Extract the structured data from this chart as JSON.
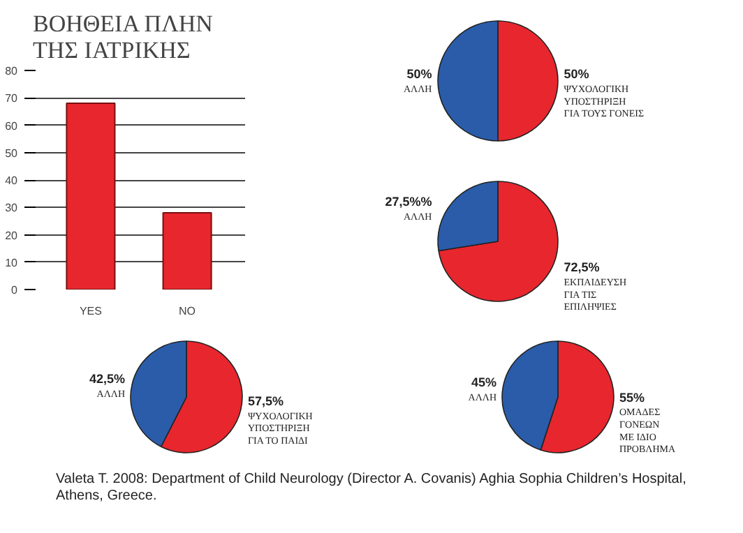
{
  "chart_data": [
    {
      "type": "bar",
      "title": "ΒΟΗΘΕΙΑ ΠΛΗΝ\nΤΗΣ ΙΑΤΡΙΚΗΣ",
      "categories": [
        "YES",
        "NO"
      ],
      "values": [
        68,
        28
      ],
      "color": "#e8262e",
      "ylim": [
        0,
        80
      ],
      "yticks": [
        0,
        10,
        20,
        30,
        40,
        50,
        60,
        70,
        80
      ],
      "grid": "y"
    },
    {
      "type": "pie",
      "categories": [
        "ΨΥΧΟΛΟΓΙΚΗ\nΥΠΟΣΤΗΡΙΞΗ\nΓΙΑ ΤΟΥΣ ΓΟΝΕΙΣ",
        "ΑΛΛΗ"
      ],
      "values": [
        50,
        50
      ],
      "colors": [
        "#e8262e",
        "#2a5caa"
      ],
      "value_labels": [
        "50%",
        "50%"
      ]
    },
    {
      "type": "pie",
      "categories": [
        "ΕΚΠΑΙΔΕΥΣΗ\nΓΙΑ ΤΙΣ\nΕΠΙΛΗΨΙΕΣ",
        "ΑΛΛΗ"
      ],
      "values": [
        72.5,
        27.5
      ],
      "colors": [
        "#e8262e",
        "#2a5caa"
      ],
      "value_labels": [
        "72,5%",
        "27,5%%"
      ]
    },
    {
      "type": "pie",
      "categories": [
        "ΨΥΧΟΛΟΓΙΚΗ\nΥΠΟΣΤΗΡΙΞΗ\nΓΙΑ ΤΟ ΠΑΙΔΙ",
        "ΑΛΛΗ"
      ],
      "values": [
        57.5,
        42.5
      ],
      "colors": [
        "#e8262e",
        "#2a5caa"
      ],
      "value_labels": [
        "57,5%",
        "42,5%"
      ]
    },
    {
      "type": "pie",
      "categories": [
        "ΟΜΑΔΕΣ\nΓΟΝΕΩΝ\nΜΕ ΙΔΙΟ\nΠΡΟΒΛΗΜΑ",
        "ΑΛΛΗ"
      ],
      "values": [
        55,
        45
      ],
      "colors": [
        "#e8262e",
        "#2a5caa"
      ],
      "value_labels": [
        "55%",
        "45%"
      ],
      "annotations": [
        "Valeta T. 2008: Department of Child Neurology (Director A. Covanis) Aghia Sophia Children’s Hospital, Athens, Greece."
      ]
    }
  ]
}
